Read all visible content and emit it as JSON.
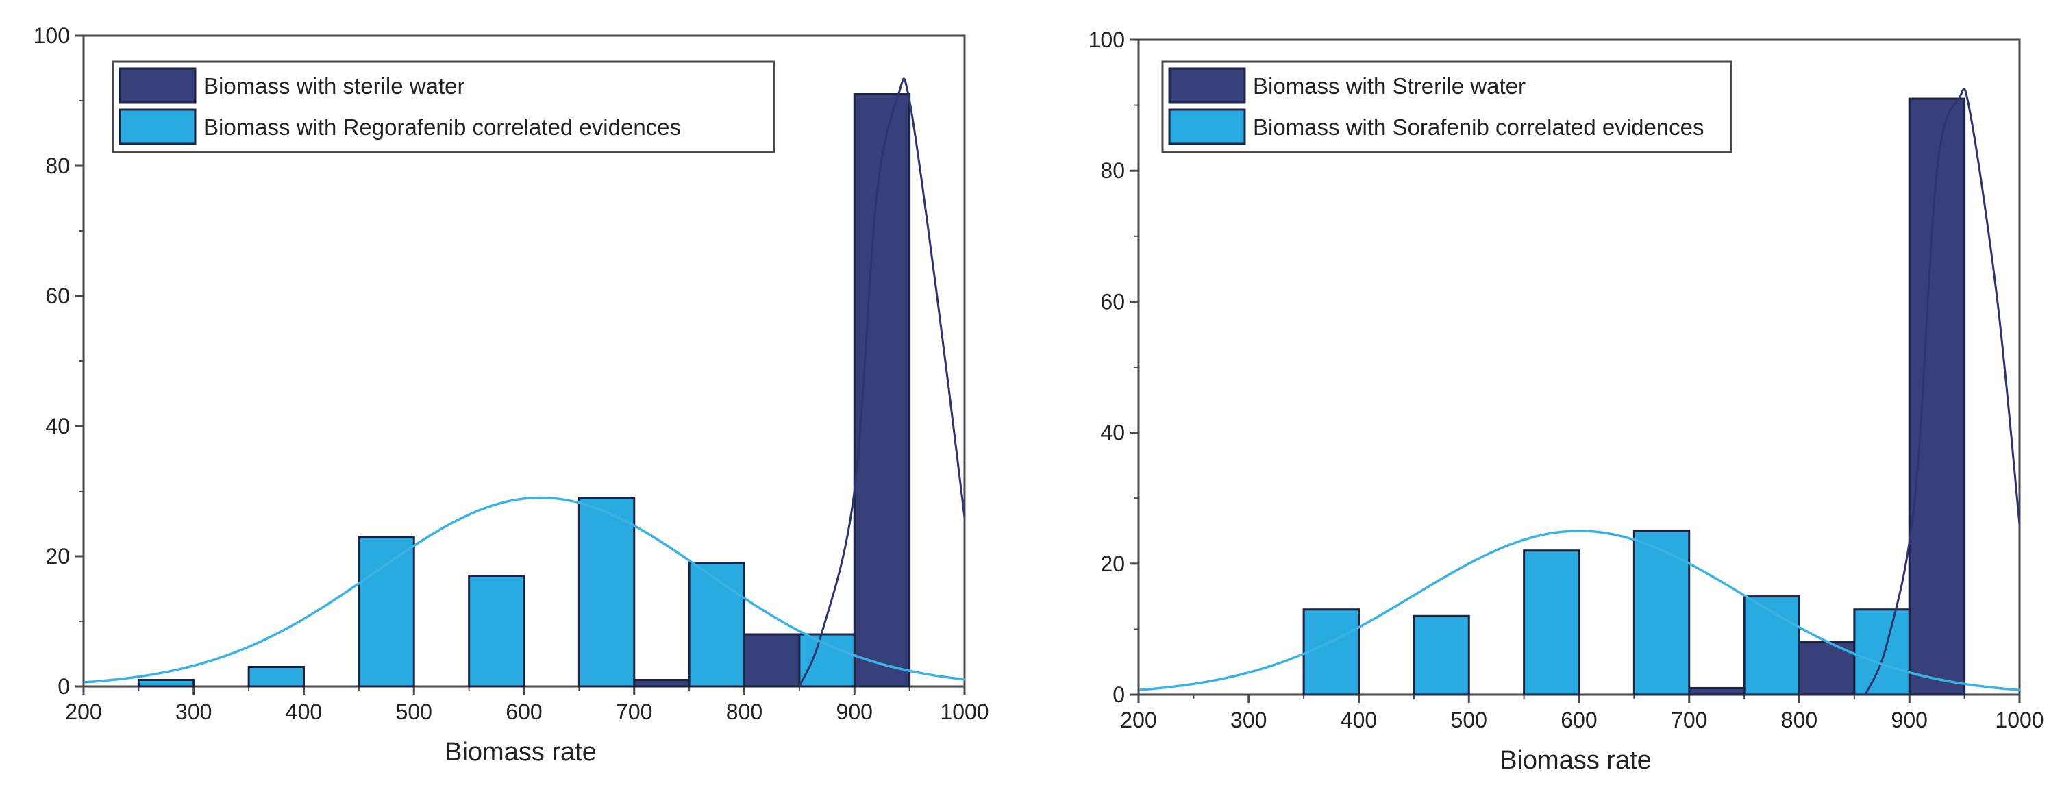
{
  "colors": {
    "water": "#37407A",
    "drug": "#29AAE1",
    "water_curve": "#2D3570",
    "drug_curve": "#3BB2E6",
    "frame": "#4A4A4A"
  },
  "chart_data": [
    {
      "type": "bar",
      "title": "",
      "xlabel": "Biomass rate",
      "ylabel": "",
      "xlim": [
        200,
        1000
      ],
      "ylim": [
        0,
        100
      ],
      "xticks": [
        "200",
        "300",
        "400",
        "500",
        "600",
        "700",
        "800",
        "900",
        "1000"
      ],
      "yticks": [
        "0",
        "20",
        "40",
        "60",
        "80",
        "100"
      ],
      "bin_width": 50,
      "series": [
        {
          "name": "Biomass with sterile water",
          "bins": [
            {
              "x": 725,
              "y": 1
            },
            {
              "x": 825,
              "y": 8
            },
            {
              "x": 925,
              "y": 91
            }
          ],
          "curve": {
            "peak_x": 940,
            "peak_y": 91,
            "spread": 33,
            "points": [
              [
                850,
                0
              ],
              [
                870,
                8
              ],
              [
                900,
                30
              ],
              [
                920,
                75
              ],
              [
                940,
                91
              ],
              [
                950,
                90
              ],
              [
                975,
                60
              ],
              [
                1000,
                26
              ]
            ]
          }
        },
        {
          "name": "Biomass with Regorafenib correlated evidences",
          "bins": [
            {
              "x": 275,
              "y": 1
            },
            {
              "x": 375,
              "y": 3
            },
            {
              "x": 475,
              "y": 23
            },
            {
              "x": 575,
              "y": 17
            },
            {
              "x": 675,
              "y": 29
            },
            {
              "x": 775,
              "y": 19
            },
            {
              "x": 875,
              "y": 8
            }
          ],
          "curve": {
            "peak_x": 615,
            "peak_y": 29,
            "spread": 150
          }
        }
      ]
    },
    {
      "type": "bar",
      "title": "",
      "xlabel": "Biomass rate",
      "ylabel": "",
      "xlim": [
        200,
        1000
      ],
      "ylim": [
        0,
        100
      ],
      "xticks": [
        "200",
        "300",
        "400",
        "500",
        "600",
        "700",
        "800",
        "900",
        "1000"
      ],
      "yticks": [
        "0",
        "20",
        "40",
        "60",
        "80",
        "100"
      ],
      "bin_width": 50,
      "series": [
        {
          "name": "Biomass with Strerile water",
          "bins": [
            {
              "x": 725,
              "y": 1
            },
            {
              "x": 825,
              "y": 8
            },
            {
              "x": 925,
              "y": 91
            }
          ],
          "curve": {
            "points": [
              [
                860,
                0
              ],
              [
                880,
                8
              ],
              [
                905,
                30
              ],
              [
                925,
                80
              ],
              [
                945,
                91
              ],
              [
                955,
                89
              ],
              [
                980,
                60
              ],
              [
                1000,
                26
              ]
            ]
          }
        },
        {
          "name": "Biomass with Sorafenib correlated evidences",
          "bins": [
            {
              "x": 375,
              "y": 13
            },
            {
              "x": 475,
              "y": 12
            },
            {
              "x": 575,
              "y": 22
            },
            {
              "x": 675,
              "y": 25
            },
            {
              "x": 775,
              "y": 15
            },
            {
              "x": 875,
              "y": 13
            }
          ],
          "curve": {
            "peak_x": 600,
            "peak_y": 25,
            "spread": 150
          }
        }
      ]
    }
  ]
}
